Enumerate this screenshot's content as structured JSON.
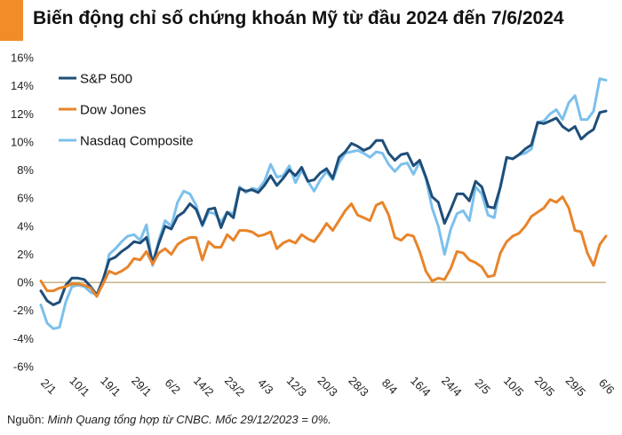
{
  "title": "Biến động chỉ số chứng khoán Mỹ từ đầu 2024 đến 7/6/2024",
  "source": {
    "prefix": "Nguồn: ",
    "text": "Minh Quang tổng hợp từ CNBC. Mốc 29/12/2023 = 0%."
  },
  "colors": {
    "accent": "#f28c28",
    "baseline": "#b8a46a"
  },
  "chart_data": {
    "type": "line",
    "ylim": [
      -6,
      16
    ],
    "yticks": [
      -6,
      -4,
      -2,
      0,
      2,
      4,
      6,
      8,
      10,
      12,
      14,
      16
    ],
    "ytick_labels": [
      "-6%",
      "-4%",
      "-2%",
      "0%",
      "2%",
      "4%",
      "6%",
      "8%",
      "10%",
      "12%",
      "14%",
      "16%"
    ],
    "xtick_labels": [
      "2/1",
      "10/1",
      "19/1",
      "29/1",
      "6/2",
      "14/2",
      "23/2",
      "4/3",
      "12/3",
      "20/3",
      "28/3",
      "8/4",
      "16/4",
      "24/4",
      "2/5",
      "10/5",
      "20/5",
      "29/5",
      "6/6"
    ],
    "legend_position": "top-left",
    "grid": false,
    "series": [
      {
        "name": "S&P 500",
        "color": "#1f4e79",
        "values": [
          -0.6,
          -1.3,
          -1.6,
          -1.4,
          -0.2,
          0.3,
          0.3,
          0.2,
          -0.3,
          -0.9,
          0.2,
          1.6,
          1.8,
          2.2,
          2.5,
          2.9,
          2.8,
          3.2,
          1.4,
          2.8,
          4.0,
          3.8,
          4.7,
          5.0,
          5.6,
          5.2,
          4.1,
          5.2,
          5.3,
          3.9,
          5.0,
          4.6,
          6.7,
          6.5,
          6.6,
          6.4,
          6.9,
          7.6,
          6.9,
          7.4,
          8.0,
          7.6,
          8.2,
          7.2,
          7.3,
          7.8,
          8.1,
          7.4,
          8.9,
          9.3,
          9.9,
          9.7,
          9.4,
          9.6,
          10.1,
          10.1,
          9.2,
          8.7,
          9.1,
          9.2,
          8.3,
          8.7,
          7.5,
          6.1,
          5.7,
          4.2,
          5.2,
          6.3,
          6.3,
          5.8,
          7.2,
          6.8,
          5.4,
          5.3,
          6.8,
          8.9,
          8.8,
          9.1,
          9.5,
          9.8,
          11.4,
          11.3,
          11.5,
          11.7,
          11.1,
          10.8,
          11.1,
          10.2,
          10.6,
          10.9,
          12.1,
          12.2
        ]
      },
      {
        "name": "Dow Jones",
        "color": "#e8842a",
        "values": [
          0.1,
          -0.6,
          -0.6,
          -0.4,
          -0.3,
          -0.1,
          -0.1,
          -0.2,
          -0.4,
          -1.0,
          -0.1,
          0.8,
          0.6,
          0.8,
          1.1,
          1.7,
          1.6,
          2.2,
          1.3,
          2.1,
          2.4,
          2.0,
          2.7,
          3.0,
          3.2,
          3.2,
          1.6,
          2.9,
          2.5,
          2.5,
          3.4,
          3.0,
          3.7,
          3.7,
          3.6,
          3.3,
          3.4,
          3.6,
          2.4,
          2.8,
          3.0,
          2.8,
          3.4,
          3.1,
          2.9,
          3.5,
          4.2,
          3.7,
          4.4,
          5.1,
          5.6,
          4.8,
          4.6,
          4.4,
          5.5,
          5.7,
          4.8,
          3.2,
          3.0,
          3.4,
          3.3,
          2.2,
          0.8,
          0.1,
          0.3,
          0.2,
          1.0,
          2.2,
          2.1,
          1.6,
          1.4,
          1.1,
          0.4,
          0.5,
          2.1,
          2.9,
          3.3,
          3.5,
          4.0,
          4.7,
          5.0,
          5.3,
          5.9,
          5.7,
          6.1,
          5.3,
          3.7,
          3.6,
          2.1,
          1.2,
          2.7,
          3.3
        ]
      },
      {
        "name": "Nasdaq Composite",
        "color": "#7cc0ec",
        "values": [
          -1.6,
          -2.9,
          -3.3,
          -3.2,
          -1.4,
          -0.3,
          -0.2,
          -0.3,
          -0.7,
          -0.9,
          -0.1,
          2.0,
          2.4,
          2.9,
          3.3,
          3.4,
          3.0,
          4.1,
          1.2,
          3.0,
          4.4,
          4.0,
          5.7,
          6.5,
          6.3,
          5.5,
          4.0,
          5.0,
          4.9,
          4.3,
          5.0,
          4.9,
          6.8,
          6.4,
          6.7,
          6.6,
          7.2,
          8.4,
          7.5,
          7.6,
          8.3,
          7.1,
          8.0,
          7.2,
          6.5,
          7.3,
          7.9,
          7.3,
          8.5,
          9.2,
          9.3,
          9.4,
          9.2,
          8.9,
          9.3,
          9.2,
          8.4,
          7.9,
          8.4,
          8.5,
          7.7,
          8.6,
          7.4,
          5.3,
          4.0,
          2.0,
          3.8,
          4.9,
          5.1,
          4.4,
          6.8,
          6.3,
          4.8,
          4.6,
          6.9,
          8.9,
          8.8,
          9.1,
          9.2,
          9.5,
          11.4,
          11.5,
          12.0,
          12.3,
          11.6,
          12.8,
          13.3,
          11.6,
          11.6,
          12.2,
          14.5,
          14.4
        ]
      }
    ]
  }
}
